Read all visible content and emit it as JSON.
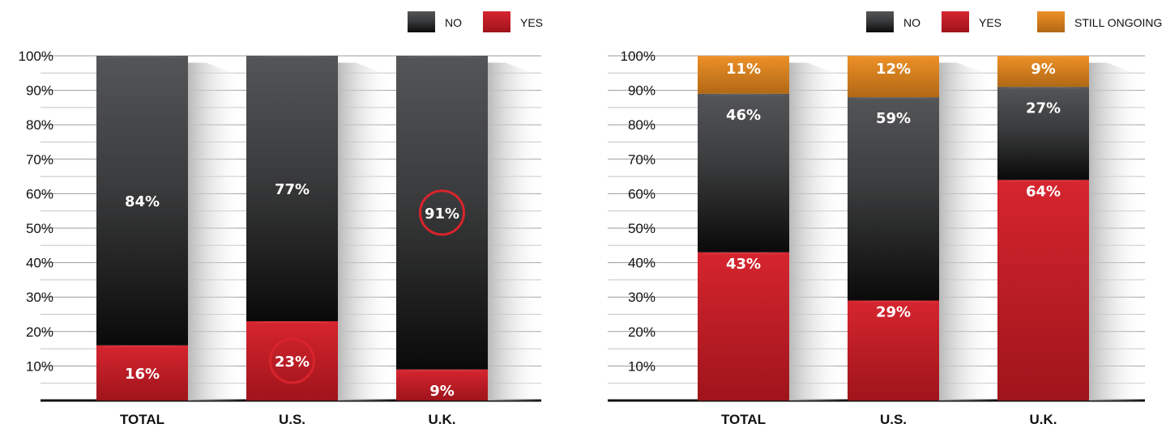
{
  "chart_data": [
    {
      "type": "bar",
      "stacked": true,
      "categories": [
        "TOTAL",
        "U.S.",
        "U.K."
      ],
      "series": [
        {
          "name": "YES",
          "values": [
            16,
            23,
            9
          ],
          "color": "#d41a24"
        },
        {
          "name": "NO",
          "values": [
            84,
            77,
            91
          ],
          "color": "#4a4b4d"
        }
      ],
      "value_labels": {
        "YES": [
          "16%",
          "23%",
          "9%"
        ],
        "NO": [
          "84%",
          "77%",
          "91%"
        ]
      },
      "highlighted": [
        {
          "series": "YES",
          "category": "U.S."
        },
        {
          "series": "NO",
          "category": "U.K."
        }
      ],
      "yticks": [
        "10%",
        "20%",
        "30%",
        "40%",
        "50%",
        "60%",
        "70%",
        "80%",
        "90%",
        "100%"
      ],
      "ylim": [
        0,
        100
      ],
      "legend": [
        {
          "name": "NO",
          "color": "#4a4b4d"
        },
        {
          "name": "YES",
          "color": "#d41a24"
        }
      ],
      "legend_position": "top-right",
      "grid": true
    },
    {
      "type": "bar",
      "stacked": true,
      "categories": [
        "TOTAL",
        "U.S.",
        "U.K."
      ],
      "series": [
        {
          "name": "YES",
          "values": [
            43,
            29,
            64
          ],
          "color": "#d41a24"
        },
        {
          "name": "NO",
          "values": [
            46,
            59,
            27
          ],
          "color": "#4a4b4d"
        },
        {
          "name": "STILL ONGOING",
          "values": [
            11,
            12,
            9
          ],
          "color": "#ec8a1c"
        }
      ],
      "value_labels": {
        "YES": [
          "43%",
          "29%",
          "64%"
        ],
        "NO": [
          "46%",
          "59%",
          "27%"
        ],
        "STILL ONGOING": [
          "11%",
          "12%",
          "9%"
        ]
      },
      "highlighted": [],
      "yticks": [
        "10%",
        "20%",
        "30%",
        "40%",
        "50%",
        "60%",
        "70%",
        "80%",
        "90%",
        "100%"
      ],
      "ylim": [
        0,
        100
      ],
      "legend": [
        {
          "name": "NO",
          "color": "#4a4b4d"
        },
        {
          "name": "YES",
          "color": "#d41a24"
        },
        {
          "name": "STILL ONGOING",
          "color": "#ec8a1c"
        }
      ],
      "legend_position": "top-right",
      "grid": true
    }
  ]
}
